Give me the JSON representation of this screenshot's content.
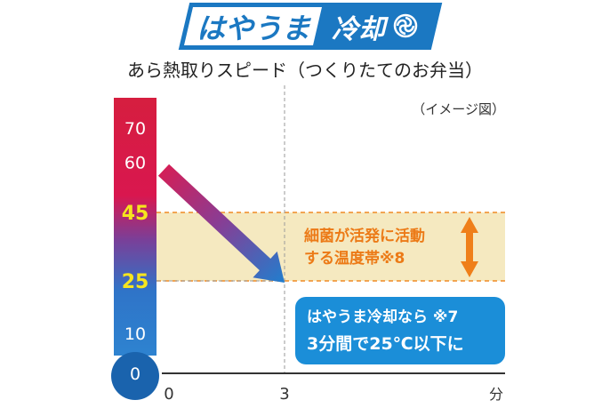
{
  "brand": {
    "name_left": "はやうま",
    "name_right": "冷却",
    "icon": "swirl-fan-icon",
    "colors": {
      "blue": "#1b78c2",
      "light_blue": "#2f90d6",
      "white": "#ffffff"
    }
  },
  "chart_data": {
    "type": "line",
    "title": "あら熱取りスピード（つくりたてのお弁当）",
    "note": "（イメージ図）",
    "xlabel": "分",
    "ylabel": "",
    "x_ticks": [
      {
        "value": 0,
        "label": "0"
      },
      {
        "value": 3,
        "label": "3"
      }
    ],
    "xlim": [
      0,
      10
    ],
    "ylim": [
      0,
      70
    ],
    "y_ticks": [
      {
        "value": 70,
        "label": "70",
        "highlight": false
      },
      {
        "value": 60,
        "label": "60",
        "highlight": false
      },
      {
        "value": 45,
        "label": "45",
        "highlight": true
      },
      {
        "value": 25,
        "label": "25",
        "highlight": true
      },
      {
        "value": 10,
        "label": "10",
        "highlight": false
      },
      {
        "value": 0,
        "label": "0",
        "highlight": false
      }
    ],
    "series": [
      {
        "points": [
          {
            "x": 0,
            "y": 60
          },
          {
            "x": 3,
            "y": 25
          }
        ]
      }
    ],
    "band": {
      "from": 25,
      "to": 45,
      "label_lines": [
        "細菌が活発に活動",
        "する温度帯※8"
      ],
      "color": "#f5e9c0",
      "line_color": "#f08a24",
      "text_color": "#ec7a16"
    },
    "callout": {
      "lines": [
        "はやうま冷却なら ※7",
        "3分間で25℃以下に"
      ],
      "color": "#1b8ed8"
    },
    "colors": {
      "hot": "#e3194a",
      "cool": "#1f7fcf",
      "thermo_bottom": "#1a63ad",
      "highlight_tick": "#f6e51e"
    }
  }
}
